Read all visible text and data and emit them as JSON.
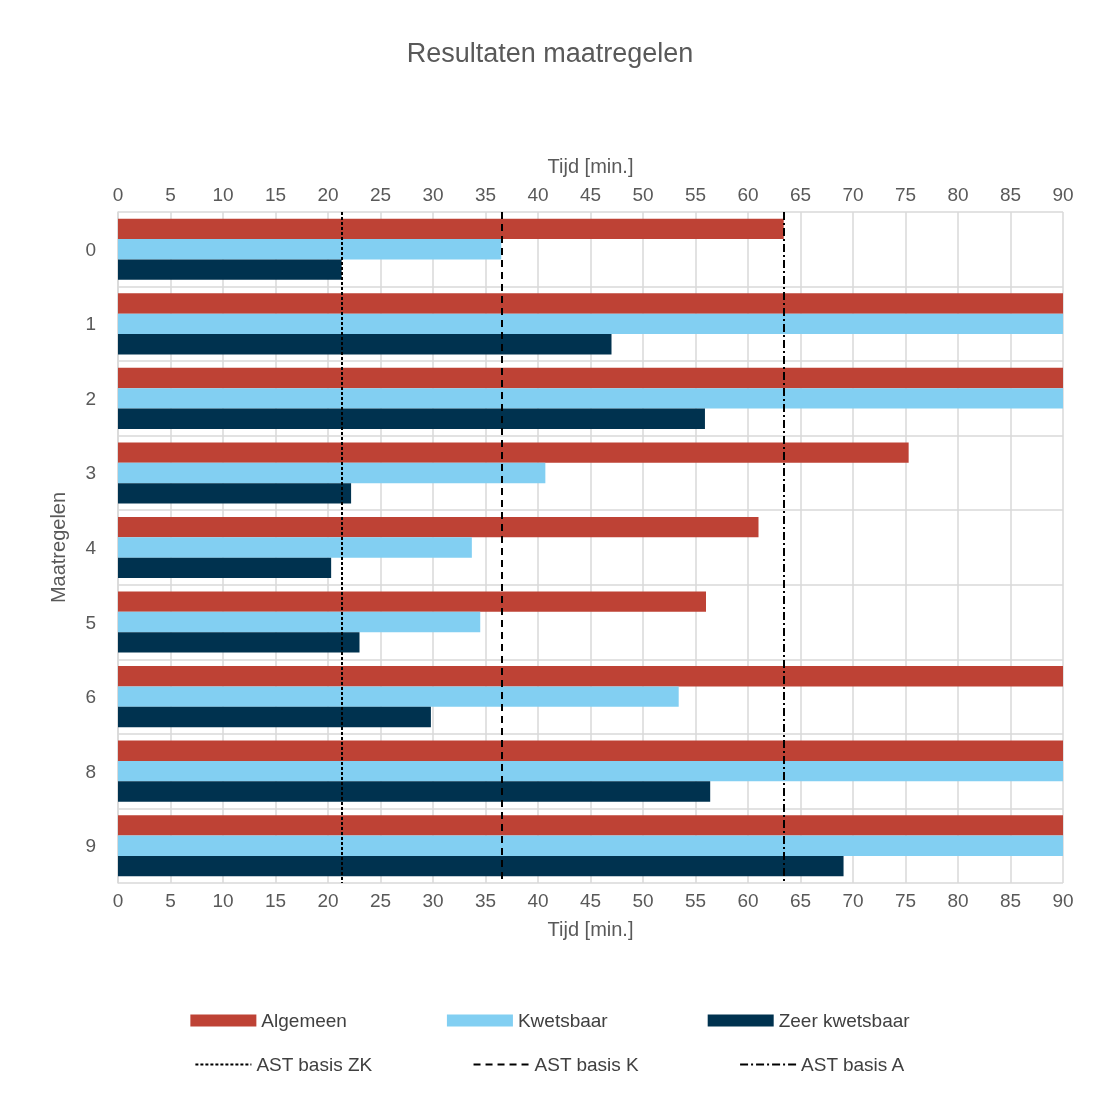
{
  "chart_data": {
    "type": "bar",
    "orientation": "horizontal",
    "title": "Resultaten maatregelen",
    "xlabel": "Tijd [min.]",
    "x2label": "Tijd [min.]",
    "ylabel": "Maatregelen",
    "categories": [
      "0",
      "1",
      "2",
      "3",
      "4",
      "5",
      "6",
      "8",
      "9"
    ],
    "series": [
      {
        "name": "Algemeen",
        "color": "#be4235",
        "values": [
          63.4,
          90,
          90,
          75.3,
          61.0,
          56.0,
          90,
          90,
          90
        ]
      },
      {
        "name": "Kwetsbaar",
        "color": "#82cff2",
        "values": [
          36.5,
          90,
          90,
          40.7,
          33.7,
          34.5,
          53.4,
          90,
          90
        ]
      },
      {
        "name": "Zeer kwetsbaar",
        "color": "#00324f",
        "values": [
          21.3,
          47.0,
          55.9,
          22.2,
          20.3,
          23.0,
          29.8,
          56.4,
          69.1
        ]
      }
    ],
    "xlim": [
      0,
      90
    ],
    "xticks": [
      0,
      5,
      10,
      15,
      20,
      25,
      30,
      35,
      40,
      45,
      50,
      55,
      60,
      65,
      70,
      75,
      80,
      85,
      90
    ],
    "x2lim": [
      0,
      90
    ],
    "x2ticks": [
      0,
      5,
      10,
      15,
      20,
      25,
      30,
      35,
      40,
      45,
      50,
      55,
      60,
      65,
      70,
      75,
      80,
      85,
      90
    ],
    "ref_lines": [
      {
        "axis": "x",
        "value": 21.3,
        "label": "AST basis ZK",
        "color": "#000000",
        "line_style": "dotted"
      },
      {
        "axis": "x",
        "value": 36.5,
        "label": "AST basis K",
        "color": "#000000",
        "line_style": "dashed"
      },
      {
        "axis": "x",
        "value": 63.4,
        "label": "AST basis A",
        "color": "#000000",
        "line_style": "dashdot"
      }
    ],
    "grid": true,
    "legend": "bottom"
  }
}
